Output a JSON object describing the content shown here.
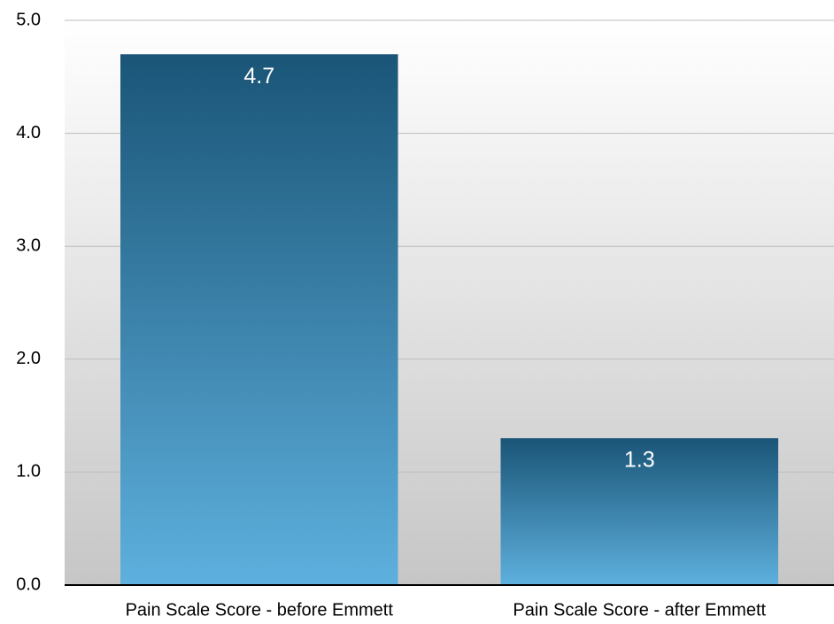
{
  "chart_data": {
    "type": "bar",
    "categories": [
      "Pain Scale Score - before Emmett",
      "Pain Scale Score - after Emmett"
    ],
    "values": [
      4.7,
      1.3
    ],
    "ylim": [
      0,
      5
    ],
    "yticks": [
      {
        "value": 0,
        "label": "0.0"
      },
      {
        "value": 1,
        "label": "1.0"
      },
      {
        "value": 2,
        "label": "2.0"
      },
      {
        "value": 3,
        "label": "3.0"
      },
      {
        "value": 4,
        "label": "4.0"
      },
      {
        "value": 5,
        "label": "5.0"
      }
    ],
    "grid": true
  }
}
